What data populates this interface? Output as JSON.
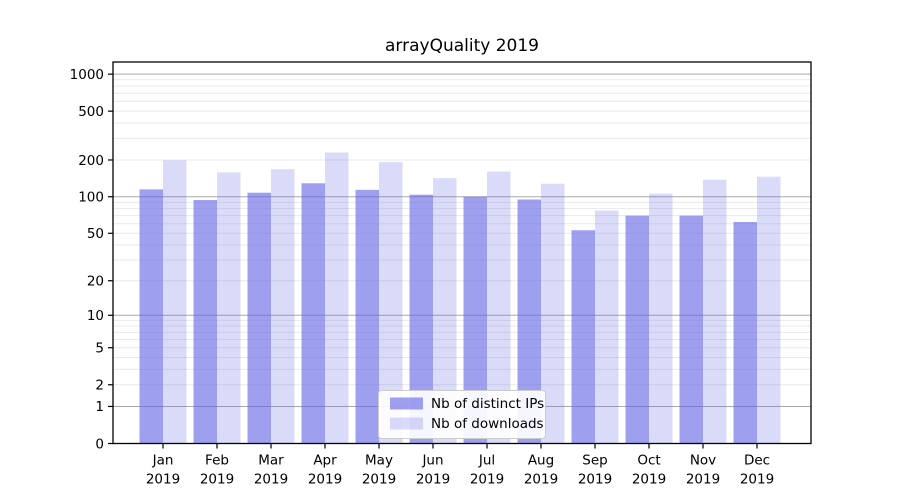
{
  "page": {
    "background": "#ffffff"
  },
  "chart_data": {
    "type": "bar",
    "title": "arrayQuality 2019",
    "categories": [
      "Jan",
      "Feb",
      "Mar",
      "Apr",
      "May",
      "Jun",
      "Jul",
      "Aug",
      "Sep",
      "Oct",
      "Nov",
      "Dec"
    ],
    "x_tick_year_label": "2019",
    "series": [
      {
        "name": "Nb of distinct IPs",
        "color": "rgba(100,100,230,0.62)",
        "values": [
          115,
          94,
          108,
          129,
          114,
          104,
          100,
          95,
          53,
          70,
          70,
          62
        ]
      },
      {
        "name": "Nb of downloads",
        "color": "rgba(100,100,230,0.24)",
        "values": [
          199,
          158,
          168,
          230,
          192,
          142,
          161,
          128,
          77,
          106,
          138,
          146
        ]
      }
    ],
    "y_axis": {
      "scale": "log-plus-one",
      "ticks": [
        0,
        1,
        2,
        5,
        10,
        20,
        50,
        100,
        200,
        500,
        1000
      ],
      "range": [
        0,
        1000
      ]
    },
    "grid": {
      "on": true,
      "major_lines_at": [
        1,
        10,
        100,
        1000
      ],
      "major_color": "#a9a9a9",
      "minor_color": "#e9e9e9"
    },
    "legend": {
      "position": "lower center",
      "background": "rgba(255,255,255,0.9)",
      "border_color": "#cccccc"
    },
    "axis_color": "#000000"
  }
}
